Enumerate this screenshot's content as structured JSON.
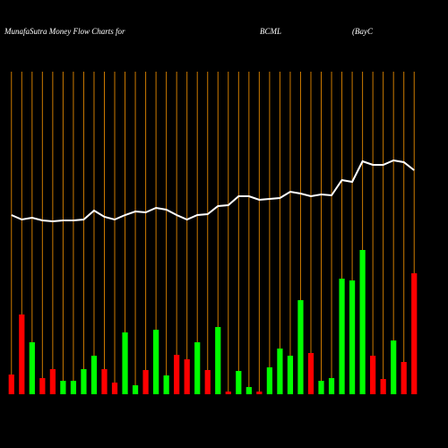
{
  "chart_data": {
    "type": "bar",
    "title": [
      "MunafaSutra  Money Flow  Charts for",
      "BCML",
      "(BayC"
    ],
    "values": [
      22,
      89,
      58,
      18,
      28,
      15,
      15,
      28,
      43,
      28,
      13,
      69,
      10,
      27,
      72,
      21,
      44,
      39,
      58,
      27,
      75,
      3,
      26,
      8,
      3,
      30,
      51,
      43,
      105,
      46,
      15,
      18,
      129,
      127,
      161,
      43,
      17,
      60,
      36,
      135
    ],
    "colors": [
      "#ff0000",
      "#ff0000",
      "#00ff00",
      "#ff0000",
      "#ff0000",
      "#00ff00",
      "#00ff00",
      "#00ff00",
      "#00ff00",
      "#ff0000",
      "#ff0000",
      "#00ff00",
      "#00ff00",
      "#ff0000",
      "#00ff00",
      "#00ff00",
      "#ff0000",
      "#ff0000",
      "#00ff00",
      "#ff0000",
      "#00ff00",
      "#ff0000",
      "#00ff00",
      "#00ff00",
      "#ff0000",
      "#00ff00",
      "#00ff00",
      "#00ff00",
      "#00ff00",
      "#ff0000",
      "#00ff00",
      "#00ff00",
      "#00ff00",
      "#00ff00",
      "#00ff00",
      "#ff0000",
      "#ff0000",
      "#00ff00",
      "#ff0000",
      "#ff0000"
    ],
    "line": {
      "color": "#ffffff",
      "values": [
        200,
        195,
        197,
        194,
        193,
        194,
        194,
        195,
        205,
        198,
        195,
        200,
        204,
        203,
        208,
        206,
        200,
        195,
        200,
        201,
        210,
        211,
        221,
        221,
        217,
        218,
        219,
        226,
        224,
        221,
        223,
        222,
        239,
        237,
        260,
        256,
        256,
        261,
        259,
        250
      ]
    },
    "gridline_color": "#cc7a00",
    "ylim": [
      0,
      400
    ]
  }
}
